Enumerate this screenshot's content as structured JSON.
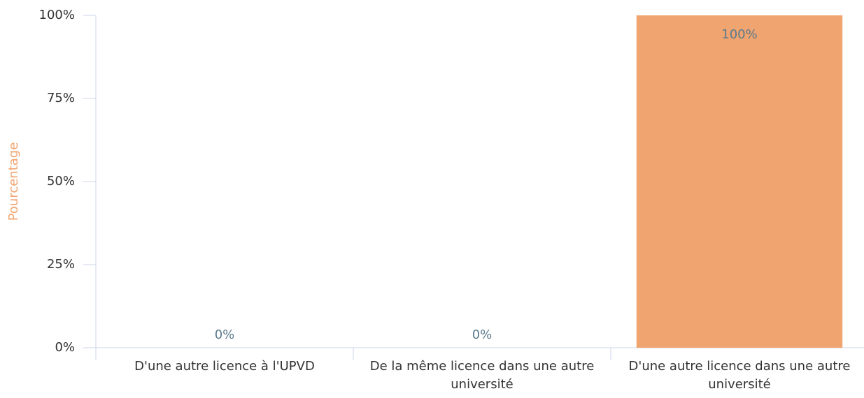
{
  "chart_data": {
    "type": "bar",
    "y_label": "Pourcentage",
    "categories": [
      "D'une autre licence à l'UPVD",
      "De la même licence dans une autre université",
      "D'une autre licence dans une autre université"
    ],
    "values": [
      0,
      0,
      100
    ],
    "value_labels": [
      "0%",
      "0%",
      "100%"
    ],
    "color": "#f0a46f",
    "ylim": [
      0,
      100
    ],
    "yticks": [
      {
        "value": 0,
        "label": "0%"
      },
      {
        "value": 25,
        "label": "25%"
      },
      {
        "value": 50,
        "label": "50%"
      },
      {
        "value": 75,
        "label": "75%"
      },
      {
        "value": 100,
        "label": "100%"
      }
    ],
    "grid": false
  }
}
